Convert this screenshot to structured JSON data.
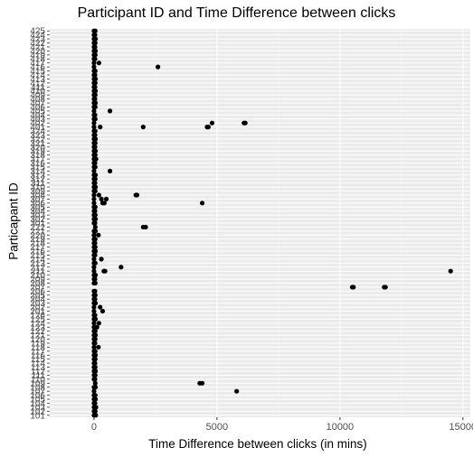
{
  "chart_data": {
    "type": "scatter",
    "title": "Participant ID and Time Difference between clicks",
    "xlabel": "Time Difference between clicks (in mins)",
    "ylabel": "Particapant ID",
    "xlim": [
      -1800,
      15300
    ],
    "x_ticks": [
      0,
      5000,
      10000,
      15000
    ],
    "x_tick_labels": [
      "0",
      "5000",
      "10000",
      "15000"
    ],
    "grid": true,
    "legend": "none",
    "point_color": "#000000",
    "panel_color": "#ebebeb",
    "categories": [
      "101",
      "102",
      "103",
      "104",
      "105",
      "106",
      "107",
      "108",
      "109",
      "110",
      "111",
      "112",
      "113",
      "114",
      "115",
      "116",
      "117",
      "118",
      "119",
      "120",
      "121",
      "122",
      "123",
      "124",
      "125",
      "126",
      "201",
      "202",
      "203",
      "204",
      "205",
      "206",
      "207",
      "208",
      "209",
      "210",
      "211",
      "212",
      "213",
      "214",
      "215",
      "216",
      "217",
      "218",
      "219",
      "220",
      "221",
      "222",
      "301",
      "302",
      "303",
      "304",
      "305",
      "306",
      "307",
      "308",
      "309",
      "310",
      "311",
      "312",
      "313",
      "314",
      "315",
      "316",
      "317",
      "318",
      "319",
      "320",
      "321",
      "322",
      "323",
      "324",
      "401",
      "402",
      "403",
      "404",
      "405",
      "406",
      "407",
      "408",
      "409",
      "410",
      "411",
      "412",
      "413",
      "414",
      "415",
      "416",
      "417",
      "418",
      "419",
      "420",
      "421",
      "422",
      "423",
      "424",
      "425"
    ],
    "points": [
      {
        "y": "101",
        "x": 0
      },
      {
        "y": "101",
        "x": 70
      },
      {
        "y": "102",
        "x": 0
      },
      {
        "y": "102",
        "x": 50
      },
      {
        "y": "103",
        "x": 0
      },
      {
        "y": "103",
        "x": 80
      },
      {
        "y": "104",
        "x": 0
      },
      {
        "y": "104",
        "x": 40
      },
      {
        "y": "105",
        "x": 0
      },
      {
        "y": "105",
        "x": 60
      },
      {
        "y": "106",
        "x": 0
      },
      {
        "y": "106",
        "x": 50
      },
      {
        "y": "107",
        "x": 0
      },
      {
        "y": "107",
        "x": 5800
      },
      {
        "y": "108",
        "x": 0
      },
      {
        "y": "108",
        "x": 60
      },
      {
        "y": "109",
        "x": 4300
      },
      {
        "y": "109",
        "x": 4400
      },
      {
        "y": "109",
        "x": 50
      },
      {
        "y": "110",
        "x": 0
      },
      {
        "y": "110",
        "x": 40
      },
      {
        "y": "111",
        "x": 0
      },
      {
        "y": "111",
        "x": 50
      },
      {
        "y": "112",
        "x": 0
      },
      {
        "y": "112",
        "x": 60
      },
      {
        "y": "113",
        "x": 0
      },
      {
        "y": "113",
        "x": 50
      },
      {
        "y": "114",
        "x": 0
      },
      {
        "y": "114",
        "x": 40
      },
      {
        "y": "115",
        "x": 0
      },
      {
        "y": "115",
        "x": 50
      },
      {
        "y": "116",
        "x": 0
      },
      {
        "y": "116",
        "x": 60
      },
      {
        "y": "117",
        "x": 0
      },
      {
        "y": "117",
        "x": 50
      },
      {
        "y": "118",
        "x": 0
      },
      {
        "y": "118",
        "x": 180
      },
      {
        "y": "119",
        "x": 0
      },
      {
        "y": "119",
        "x": 40
      },
      {
        "y": "120",
        "x": 0
      },
      {
        "y": "120",
        "x": 50
      },
      {
        "y": "121",
        "x": 0
      },
      {
        "y": "121",
        "x": 60
      },
      {
        "y": "122",
        "x": 0
      },
      {
        "y": "122",
        "x": 50
      },
      {
        "y": "123",
        "x": 0
      },
      {
        "y": "123",
        "x": 120
      },
      {
        "y": "124",
        "x": 0
      },
      {
        "y": "124",
        "x": 200
      },
      {
        "y": "125",
        "x": 0
      },
      {
        "y": "125",
        "x": 60
      },
      {
        "y": "126",
        "x": 0
      },
      {
        "y": "126",
        "x": 40
      },
      {
        "y": "201",
        "x": 0
      },
      {
        "y": "201",
        "x": 350
      },
      {
        "y": "202",
        "x": 0
      },
      {
        "y": "202",
        "x": 250
      },
      {
        "y": "203",
        "x": 0
      },
      {
        "y": "203",
        "x": 60
      },
      {
        "y": "204",
        "x": 0
      },
      {
        "y": "204",
        "x": 40
      },
      {
        "y": "205",
        "x": 0
      },
      {
        "y": "205",
        "x": 50
      },
      {
        "y": "206",
        "x": 0
      },
      {
        "y": "206",
        "x": 40
      },
      {
        "y": "207",
        "x": 10500
      },
      {
        "y": "207",
        "x": 10550
      },
      {
        "y": "207",
        "x": 11800
      },
      {
        "y": "207",
        "x": 11850
      },
      {
        "y": "208",
        "x": 0
      },
      {
        "y": "208",
        "x": 50
      },
      {
        "y": "209",
        "x": 0
      },
      {
        "y": "209",
        "x": 40
      },
      {
        "y": "210",
        "x": 0
      },
      {
        "y": "210",
        "x": 60
      },
      {
        "y": "211",
        "x": 0
      },
      {
        "y": "211",
        "x": 400
      },
      {
        "y": "211",
        "x": 450
      },
      {
        "y": "211",
        "x": 14500
      },
      {
        "y": "212",
        "x": 0
      },
      {
        "y": "212",
        "x": 1100
      },
      {
        "y": "213",
        "x": 0
      },
      {
        "y": "213",
        "x": 50
      },
      {
        "y": "214",
        "x": 0
      },
      {
        "y": "214",
        "x": 300
      },
      {
        "y": "215",
        "x": 0
      },
      {
        "y": "215",
        "x": 40
      },
      {
        "y": "216",
        "x": 0
      },
      {
        "y": "216",
        "x": 60
      },
      {
        "y": "217",
        "x": 0
      },
      {
        "y": "217",
        "x": 50
      },
      {
        "y": "218",
        "x": 0
      },
      {
        "y": "218",
        "x": 40
      },
      {
        "y": "219",
        "x": 0
      },
      {
        "y": "219",
        "x": 50
      },
      {
        "y": "220",
        "x": 0
      },
      {
        "y": "220",
        "x": 180
      },
      {
        "y": "221",
        "x": 0
      },
      {
        "y": "221",
        "x": 60
      },
      {
        "y": "222",
        "x": 2000
      },
      {
        "y": "222",
        "x": 2100
      },
      {
        "y": "222",
        "x": 50
      },
      {
        "y": "301",
        "x": 0
      },
      {
        "y": "301",
        "x": 40
      },
      {
        "y": "302",
        "x": 0
      },
      {
        "y": "302",
        "x": 60
      },
      {
        "y": "303",
        "x": 0
      },
      {
        "y": "303",
        "x": 50
      },
      {
        "y": "304",
        "x": 0
      },
      {
        "y": "304",
        "x": 40
      },
      {
        "y": "305",
        "x": 0
      },
      {
        "y": "305",
        "x": 50
      },
      {
        "y": "306",
        "x": 0
      },
      {
        "y": "306",
        "x": 350
      },
      {
        "y": "306",
        "x": 420
      },
      {
        "y": "306",
        "x": 4400
      },
      {
        "y": "307",
        "x": 0
      },
      {
        "y": "307",
        "x": 300
      },
      {
        "y": "307",
        "x": 500
      },
      {
        "y": "308",
        "x": 0
      },
      {
        "y": "308",
        "x": 200
      },
      {
        "y": "308",
        "x": 1700
      },
      {
        "y": "308",
        "x": 1750
      },
      {
        "y": "309",
        "x": 0
      },
      {
        "y": "309",
        "x": 50
      },
      {
        "y": "310",
        "x": 0
      },
      {
        "y": "310",
        "x": 60
      },
      {
        "y": "311",
        "x": 0
      },
      {
        "y": "311",
        "x": 40
      },
      {
        "y": "312",
        "x": 0
      },
      {
        "y": "312",
        "x": 50
      },
      {
        "y": "313",
        "x": 0
      },
      {
        "y": "313",
        "x": 60
      },
      {
        "y": "314",
        "x": 0
      },
      {
        "y": "314",
        "x": 650
      },
      {
        "y": "315",
        "x": 0
      },
      {
        "y": "315",
        "x": 50
      },
      {
        "y": "316",
        "x": 0
      },
      {
        "y": "316",
        "x": 40
      },
      {
        "y": "317",
        "x": 0
      },
      {
        "y": "317",
        "x": 80
      },
      {
        "y": "318",
        "x": 0
      },
      {
        "y": "318",
        "x": 50
      },
      {
        "y": "319",
        "x": 0
      },
      {
        "y": "319",
        "x": 60
      },
      {
        "y": "320",
        "x": 0
      },
      {
        "y": "320",
        "x": 40
      },
      {
        "y": "321",
        "x": 0
      },
      {
        "y": "321",
        "x": 50
      },
      {
        "y": "322",
        "x": 0
      },
      {
        "y": "322",
        "x": 60
      },
      {
        "y": "323",
        "x": 0
      },
      {
        "y": "323",
        "x": 40
      },
      {
        "y": "324",
        "x": 0
      },
      {
        "y": "324",
        "x": 50
      },
      {
        "y": "401",
        "x": 0
      },
      {
        "y": "401",
        "x": 250
      },
      {
        "y": "401",
        "x": 2000
      },
      {
        "y": "401",
        "x": 4600
      },
      {
        "y": "401",
        "x": 4650
      },
      {
        "y": "402",
        "x": 0
      },
      {
        "y": "402",
        "x": 4800
      },
      {
        "y": "402",
        "x": 6100
      },
      {
        "y": "402",
        "x": 6150
      },
      {
        "y": "403",
        "x": 0
      },
      {
        "y": "403",
        "x": 50
      },
      {
        "y": "404",
        "x": 0
      },
      {
        "y": "404",
        "x": 40
      },
      {
        "y": "405",
        "x": 0
      },
      {
        "y": "405",
        "x": 650
      },
      {
        "y": "406",
        "x": 0
      },
      {
        "y": "406",
        "x": 50
      },
      {
        "y": "407",
        "x": 0
      },
      {
        "y": "407",
        "x": 60
      },
      {
        "y": "408",
        "x": 0
      },
      {
        "y": "408",
        "x": 40
      },
      {
        "y": "409",
        "x": 0
      },
      {
        "y": "409",
        "x": 50
      },
      {
        "y": "410",
        "x": 0
      },
      {
        "y": "410",
        "x": 60
      },
      {
        "y": "411",
        "x": 0
      },
      {
        "y": "411",
        "x": 40
      },
      {
        "y": "412",
        "x": 0
      },
      {
        "y": "412",
        "x": 50
      },
      {
        "y": "413",
        "x": 0
      },
      {
        "y": "413",
        "x": 60
      },
      {
        "y": "414",
        "x": 0
      },
      {
        "y": "414",
        "x": 40
      },
      {
        "y": "415",
        "x": 0
      },
      {
        "y": "415",
        "x": 50
      },
      {
        "y": "416",
        "x": 0
      },
      {
        "y": "416",
        "x": 2600
      },
      {
        "y": "417",
        "x": 0
      },
      {
        "y": "417",
        "x": 200
      },
      {
        "y": "418",
        "x": 0
      },
      {
        "y": "418",
        "x": 40
      },
      {
        "y": "419",
        "x": 0
      },
      {
        "y": "419",
        "x": 50
      },
      {
        "y": "420",
        "x": 0
      },
      {
        "y": "420",
        "x": 60
      },
      {
        "y": "421",
        "x": 0
      },
      {
        "y": "421",
        "x": 40
      },
      {
        "y": "422",
        "x": 0
      },
      {
        "y": "422",
        "x": 50
      },
      {
        "y": "423",
        "x": 0
      },
      {
        "y": "423",
        "x": 60
      },
      {
        "y": "424",
        "x": 0
      },
      {
        "y": "424",
        "x": 40
      },
      {
        "y": "425",
        "x": 0
      },
      {
        "y": "425",
        "x": 50
      }
    ]
  }
}
